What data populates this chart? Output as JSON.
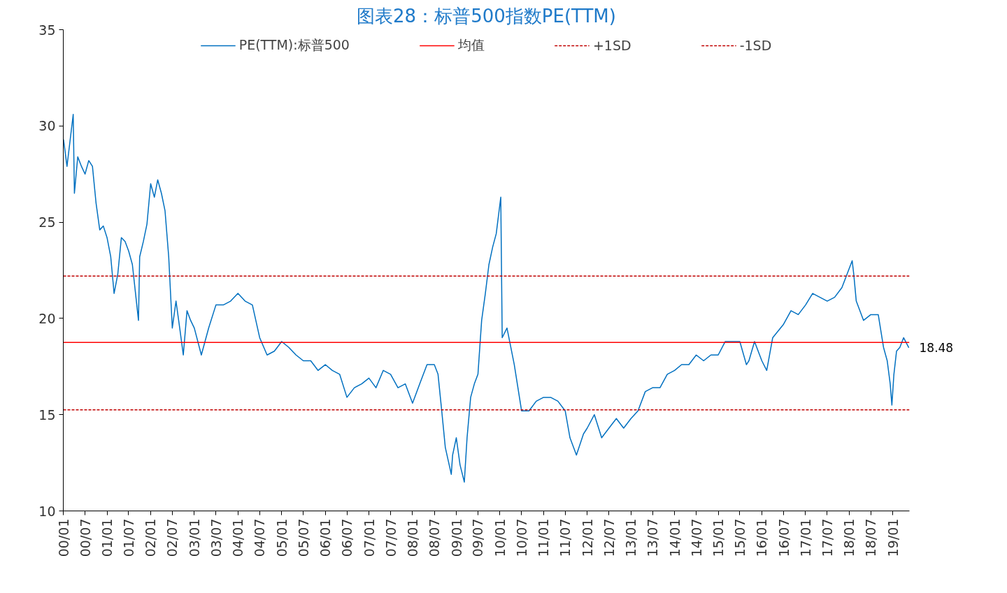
{
  "chart_data": {
    "type": "line",
    "title": "图表28：标普500指数PE(TTM)",
    "x": [
      "2000-01-03",
      "2000-02-01",
      "2000-03-24",
      "2000-04-03",
      "2000-05-01",
      "2000-06-01",
      "2000-07-01",
      "2000-08-01",
      "2000-09-01",
      "2000-10-01",
      "2000-11-01",
      "2000-12-01",
      "2001-01-01",
      "2001-02-01",
      "2001-03-01",
      "2001-04-01",
      "2001-05-01",
      "2001-06-01",
      "2001-07-01",
      "2001-08-01",
      "2001-09-21",
      "2001-10-01",
      "2001-11-01",
      "2001-12-01",
      "2002-01-01",
      "2002-02-01",
      "2002-03-01",
      "2002-04-01",
      "2002-05-01",
      "2002-06-01",
      "2002-07-01",
      "2002-08-01",
      "2002-09-01",
      "2002-10-01",
      "2002-11-01",
      "2002-12-01",
      "2003-01-01",
      "2003-03-01",
      "2003-05-01",
      "2003-07-01",
      "2003-09-01",
      "2003-11-01",
      "2004-01-01",
      "2004-03-01",
      "2004-05-01",
      "2004-07-01",
      "2004-09-01",
      "2004-11-01",
      "2005-01-01",
      "2005-03-01",
      "2005-05-01",
      "2005-07-01",
      "2005-09-01",
      "2005-11-01",
      "2006-01-01",
      "2006-03-01",
      "2006-05-01",
      "2006-07-01",
      "2006-09-01",
      "2006-11-01",
      "2007-01-01",
      "2007-03-01",
      "2007-05-01",
      "2007-07-01",
      "2007-09-01",
      "2007-11-01",
      "2008-01-01",
      "2008-03-01",
      "2008-05-01",
      "2008-07-01",
      "2008-08-01",
      "2008-09-01",
      "2008-10-01",
      "2008-11-20",
      "2008-12-01",
      "2009-01-01",
      "2009-02-01",
      "2009-03-09",
      "2009-04-01",
      "2009-05-01",
      "2009-06-01",
      "2009-07-01",
      "2009-08-01",
      "2009-09-01",
      "2009-10-01",
      "2009-11-01",
      "2009-12-01",
      "2010-01-08",
      "2010-01-20",
      "2010-03-01",
      "2010-05-01",
      "2010-07-01",
      "2010-09-01",
      "2010-11-01",
      "2011-01-01",
      "2011-03-01",
      "2011-05-01",
      "2011-07-01",
      "2011-08-10",
      "2011-10-03",
      "2011-12-01",
      "2012-01-01",
      "2012-03-01",
      "2012-05-01",
      "2012-07-01",
      "2012-09-01",
      "2012-11-01",
      "2013-01-01",
      "2013-03-01",
      "2013-05-01",
      "2013-07-01",
      "2013-09-01",
      "2013-11-01",
      "2014-01-01",
      "2014-03-01",
      "2014-05-01",
      "2014-07-01",
      "2014-09-01",
      "2014-11-01",
      "2015-01-01",
      "2015-03-01",
      "2015-05-01",
      "2015-07-01",
      "2015-08-25",
      "2015-09-15",
      "2015-11-01",
      "2016-01-01",
      "2016-02-11",
      "2016-04-01",
      "2016-07-01",
      "2016-09-01",
      "2016-11-01",
      "2017-01-01",
      "2017-03-01",
      "2017-05-01",
      "2017-07-01",
      "2017-09-01",
      "2017-11-01",
      "2018-01-26",
      "2018-02-08",
      "2018-03-01",
      "2018-05-01",
      "2018-07-01",
      "2018-09-01",
      "2018-10-15",
      "2018-11-15",
      "2018-12-10",
      "2018-12-24",
      "2019-01-10",
      "2019-02-01",
      "2019-03-01",
      "2019-04-01",
      "2019-05-15"
    ],
    "series": [
      {
        "name": "PE(TTM):标普500",
        "color": "#0070c0",
        "values": [
          29.3,
          27.9,
          30.6,
          26.5,
          28.4,
          27.9,
          27.5,
          28.2,
          27.9,
          26.0,
          24.6,
          24.8,
          24.2,
          23.2,
          21.3,
          22.3,
          24.2,
          24.0,
          23.5,
          22.8,
          19.9,
          23.2,
          24.0,
          24.9,
          27.0,
          26.3,
          27.2,
          26.5,
          25.6,
          23.2,
          19.5,
          20.9,
          19.5,
          18.1,
          20.4,
          19.9,
          19.5,
          18.1,
          19.5,
          20.7,
          20.7,
          20.9,
          21.3,
          20.9,
          20.7,
          19.0,
          18.1,
          18.3,
          18.8,
          18.5,
          18.1,
          17.8,
          17.8,
          17.3,
          17.6,
          17.3,
          17.1,
          15.9,
          16.4,
          16.6,
          16.9,
          16.4,
          17.3,
          17.1,
          16.4,
          16.6,
          15.6,
          16.6,
          17.6,
          17.6,
          17.1,
          15.2,
          13.3,
          11.9,
          12.9,
          13.8,
          12.4,
          11.5,
          13.8,
          15.9,
          16.6,
          17.1,
          19.9,
          21.3,
          22.8,
          23.7,
          24.4,
          26.3,
          19.0,
          19.5,
          17.6,
          15.2,
          15.2,
          15.7,
          15.9,
          15.9,
          15.7,
          15.2,
          13.8,
          12.9,
          14.0,
          14.3,
          15.0,
          13.8,
          14.3,
          14.8,
          14.3,
          14.8,
          15.2,
          16.2,
          16.4,
          16.4,
          17.1,
          17.3,
          17.6,
          17.6,
          18.1,
          17.8,
          18.1,
          18.1,
          18.8,
          18.8,
          18.8,
          17.6,
          17.8,
          18.8,
          17.8,
          17.3,
          19.0,
          19.7,
          20.4,
          20.2,
          20.7,
          21.3,
          21.1,
          20.9,
          21.1,
          21.6,
          23.0,
          22.3,
          20.9,
          19.9,
          20.2,
          20.2,
          18.5,
          17.8,
          16.6,
          15.5,
          17.1,
          18.3,
          18.5,
          19.0,
          18.48
        ]
      }
    ],
    "ref_lines": [
      {
        "axis": "y",
        "value": 18.75,
        "label": "均值",
        "color": "#ff0000",
        "line_style": "solid"
      },
      {
        "axis": "y",
        "value": 22.2,
        "label": "+1SD",
        "color": "#c00000",
        "line_style": "dashed"
      },
      {
        "axis": "y",
        "value": 15.25,
        "label": "-1SD",
        "color": "#c00000",
        "line_style": "dashed"
      }
    ],
    "annotations": [
      {
        "text": "18.48",
        "x": "2019-05-15",
        "y": 18.48
      }
    ],
    "xlim": [
      "2000-01-01",
      "2019-05-20"
    ],
    "xticks": [
      {
        "value": "2000-01-01",
        "label": "00/01"
      },
      {
        "value": "2000-07-01",
        "label": "00/07"
      },
      {
        "value": "2001-01-01",
        "label": "01/01"
      },
      {
        "value": "2001-07-01",
        "label": "01/07"
      },
      {
        "value": "2002-01-01",
        "label": "02/01"
      },
      {
        "value": "2002-07-01",
        "label": "02/07"
      },
      {
        "value": "2003-01-01",
        "label": "03/01"
      },
      {
        "value": "2003-07-01",
        "label": "03/07"
      },
      {
        "value": "2004-01-01",
        "label": "04/01"
      },
      {
        "value": "2004-07-01",
        "label": "04/07"
      },
      {
        "value": "2005-01-01",
        "label": "05/01"
      },
      {
        "value": "2005-07-01",
        "label": "05/07"
      },
      {
        "value": "2006-01-01",
        "label": "06/01"
      },
      {
        "value": "2006-07-01",
        "label": "06/07"
      },
      {
        "value": "2007-01-01",
        "label": "07/01"
      },
      {
        "value": "2007-07-01",
        "label": "07/07"
      },
      {
        "value": "2008-01-01",
        "label": "08/01"
      },
      {
        "value": "2008-07-01",
        "label": "08/07"
      },
      {
        "value": "2009-01-01",
        "label": "09/01"
      },
      {
        "value": "2009-07-01",
        "label": "09/07"
      },
      {
        "value": "2010-01-01",
        "label": "10/01"
      },
      {
        "value": "2010-07-01",
        "label": "10/07"
      },
      {
        "value": "2011-01-01",
        "label": "11/01"
      },
      {
        "value": "2011-07-01",
        "label": "11/07"
      },
      {
        "value": "2012-01-01",
        "label": "12/01"
      },
      {
        "value": "2012-07-01",
        "label": "12/07"
      },
      {
        "value": "2013-01-01",
        "label": "13/01"
      },
      {
        "value": "2013-07-01",
        "label": "13/07"
      },
      {
        "value": "2014-01-01",
        "label": "14/01"
      },
      {
        "value": "2014-07-01",
        "label": "14/07"
      },
      {
        "value": "2015-01-01",
        "label": "15/01"
      },
      {
        "value": "2015-07-01",
        "label": "15/07"
      },
      {
        "value": "2016-01-01",
        "label": "16/01"
      },
      {
        "value": "2016-07-01",
        "label": "16/07"
      },
      {
        "value": "2017-01-01",
        "label": "17/01"
      },
      {
        "value": "2017-07-01",
        "label": "17/07"
      },
      {
        "value": "2018-01-01",
        "label": "18/01"
      },
      {
        "value": "2018-07-01",
        "label": "18/07"
      },
      {
        "value": "2019-01-01",
        "label": "19/01"
      }
    ],
    "ylim": [
      10,
      35
    ],
    "yticks": [
      10,
      15,
      20,
      25,
      30,
      35
    ],
    "grid": false,
    "legend": "top",
    "marker": "none",
    "line_style": "solid"
  }
}
